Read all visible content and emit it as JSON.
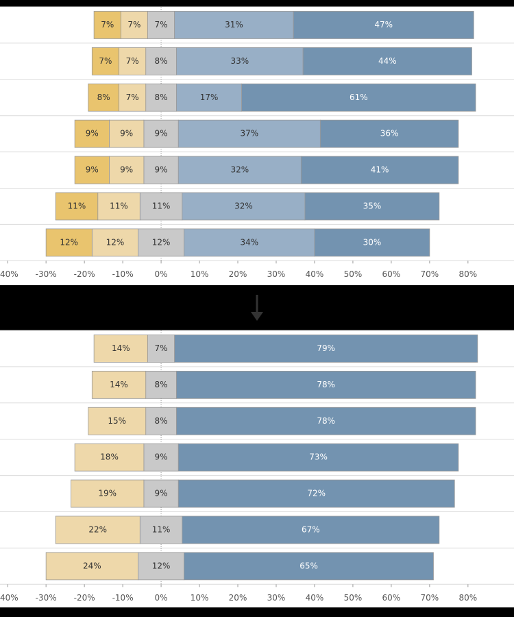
{
  "chart_data": [
    {
      "type": "diverging-bar",
      "series": [
        {
          "color": "#e9c46e",
          "label_color": "#333333",
          "values": [
            7,
            7,
            8,
            9,
            9,
            11,
            12
          ],
          "value_labels": [
            "7%",
            "7%",
            "8%",
            "9%",
            "9%",
            "11%",
            "12%"
          ]
        },
        {
          "color": "#eed8aa",
          "label_color": "#333333",
          "values": [
            7,
            7,
            7,
            9,
            9,
            11,
            12
          ],
          "value_labels": [
            "7%",
            "7%",
            "7%",
            "9%",
            "9%",
            "11%",
            "12%"
          ]
        },
        {
          "color": "#c9c9c9",
          "label_color": "#333333",
          "values": [
            7,
            8,
            8,
            9,
            9,
            11,
            12
          ],
          "value_labels": [
            "7%",
            "8%",
            "8%",
            "9%",
            "9%",
            "11%",
            "12%"
          ]
        },
        {
          "color": "#98afc6",
          "label_color": "#333333",
          "values": [
            31,
            33,
            17,
            37,
            32,
            32,
            34
          ],
          "value_labels": [
            "31%",
            "33%",
            "17%",
            "37%",
            "32%",
            "32%",
            "34%"
          ]
        },
        {
          "color": "#7393b0",
          "label_color": "#ffffff",
          "values": [
            47,
            44,
            61,
            36,
            41,
            35,
            30
          ],
          "value_labels": [
            "47%",
            "44%",
            "61%",
            "36%",
            "41%",
            "35%",
            "30%"
          ]
        }
      ],
      "xlim": [
        -42,
        92
      ],
      "xticks": [
        {
          "value": -40,
          "label": "-40%"
        },
        {
          "value": -30,
          "label": "-30%"
        },
        {
          "value": -20,
          "label": "-20%"
        },
        {
          "value": -10,
          "label": "-10%"
        },
        {
          "value": 0,
          "label": "0%"
        },
        {
          "value": 10,
          "label": "10%"
        },
        {
          "value": 20,
          "label": "20%"
        },
        {
          "value": 30,
          "label": "30%"
        },
        {
          "value": 40,
          "label": "40%"
        },
        {
          "value": 50,
          "label": "50%"
        },
        {
          "value": 60,
          "label": "60%"
        },
        {
          "value": 70,
          "label": "70%"
        },
        {
          "value": 80,
          "label": "80%"
        }
      ]
    },
    {
      "type": "diverging-bar",
      "series": [
        {
          "color": "#eed8aa",
          "label_color": "#333333",
          "values": [
            14,
            14,
            15,
            18,
            19,
            22,
            24
          ],
          "value_labels": [
            "14%",
            "14%",
            "15%",
            "18%",
            "19%",
            "22%",
            "24%"
          ]
        },
        {
          "color": "#c9c9c9",
          "label_color": "#333333",
          "values": [
            7,
            8,
            8,
            9,
            9,
            11,
            12
          ],
          "value_labels": [
            "7%",
            "8%",
            "8%",
            "9%",
            "9%",
            "11%",
            "12%"
          ]
        },
        {
          "color": "#7393b0",
          "label_color": "#ffffff",
          "values": [
            79,
            78,
            78,
            73,
            72,
            67,
            65
          ],
          "value_labels": [
            "79%",
            "78%",
            "78%",
            "73%",
            "72%",
            "67%",
            "65%"
          ]
        }
      ],
      "xlim": [
        -42,
        92
      ],
      "xticks": [
        {
          "value": -40,
          "label": "-40%"
        },
        {
          "value": -30,
          "label": "-30%"
        },
        {
          "value": -20,
          "label": "-20%"
        },
        {
          "value": -10,
          "label": "-10%"
        },
        {
          "value": 0,
          "label": "0%"
        },
        {
          "value": 10,
          "label": "10%"
        },
        {
          "value": 20,
          "label": "20%"
        },
        {
          "value": 30,
          "label": "30%"
        },
        {
          "value": 40,
          "label": "40%"
        },
        {
          "value": 50,
          "label": "50%"
        },
        {
          "value": 60,
          "label": "60%"
        },
        {
          "value": 70,
          "label": "70%"
        },
        {
          "value": 80,
          "label": "80%"
        }
      ]
    }
  ]
}
